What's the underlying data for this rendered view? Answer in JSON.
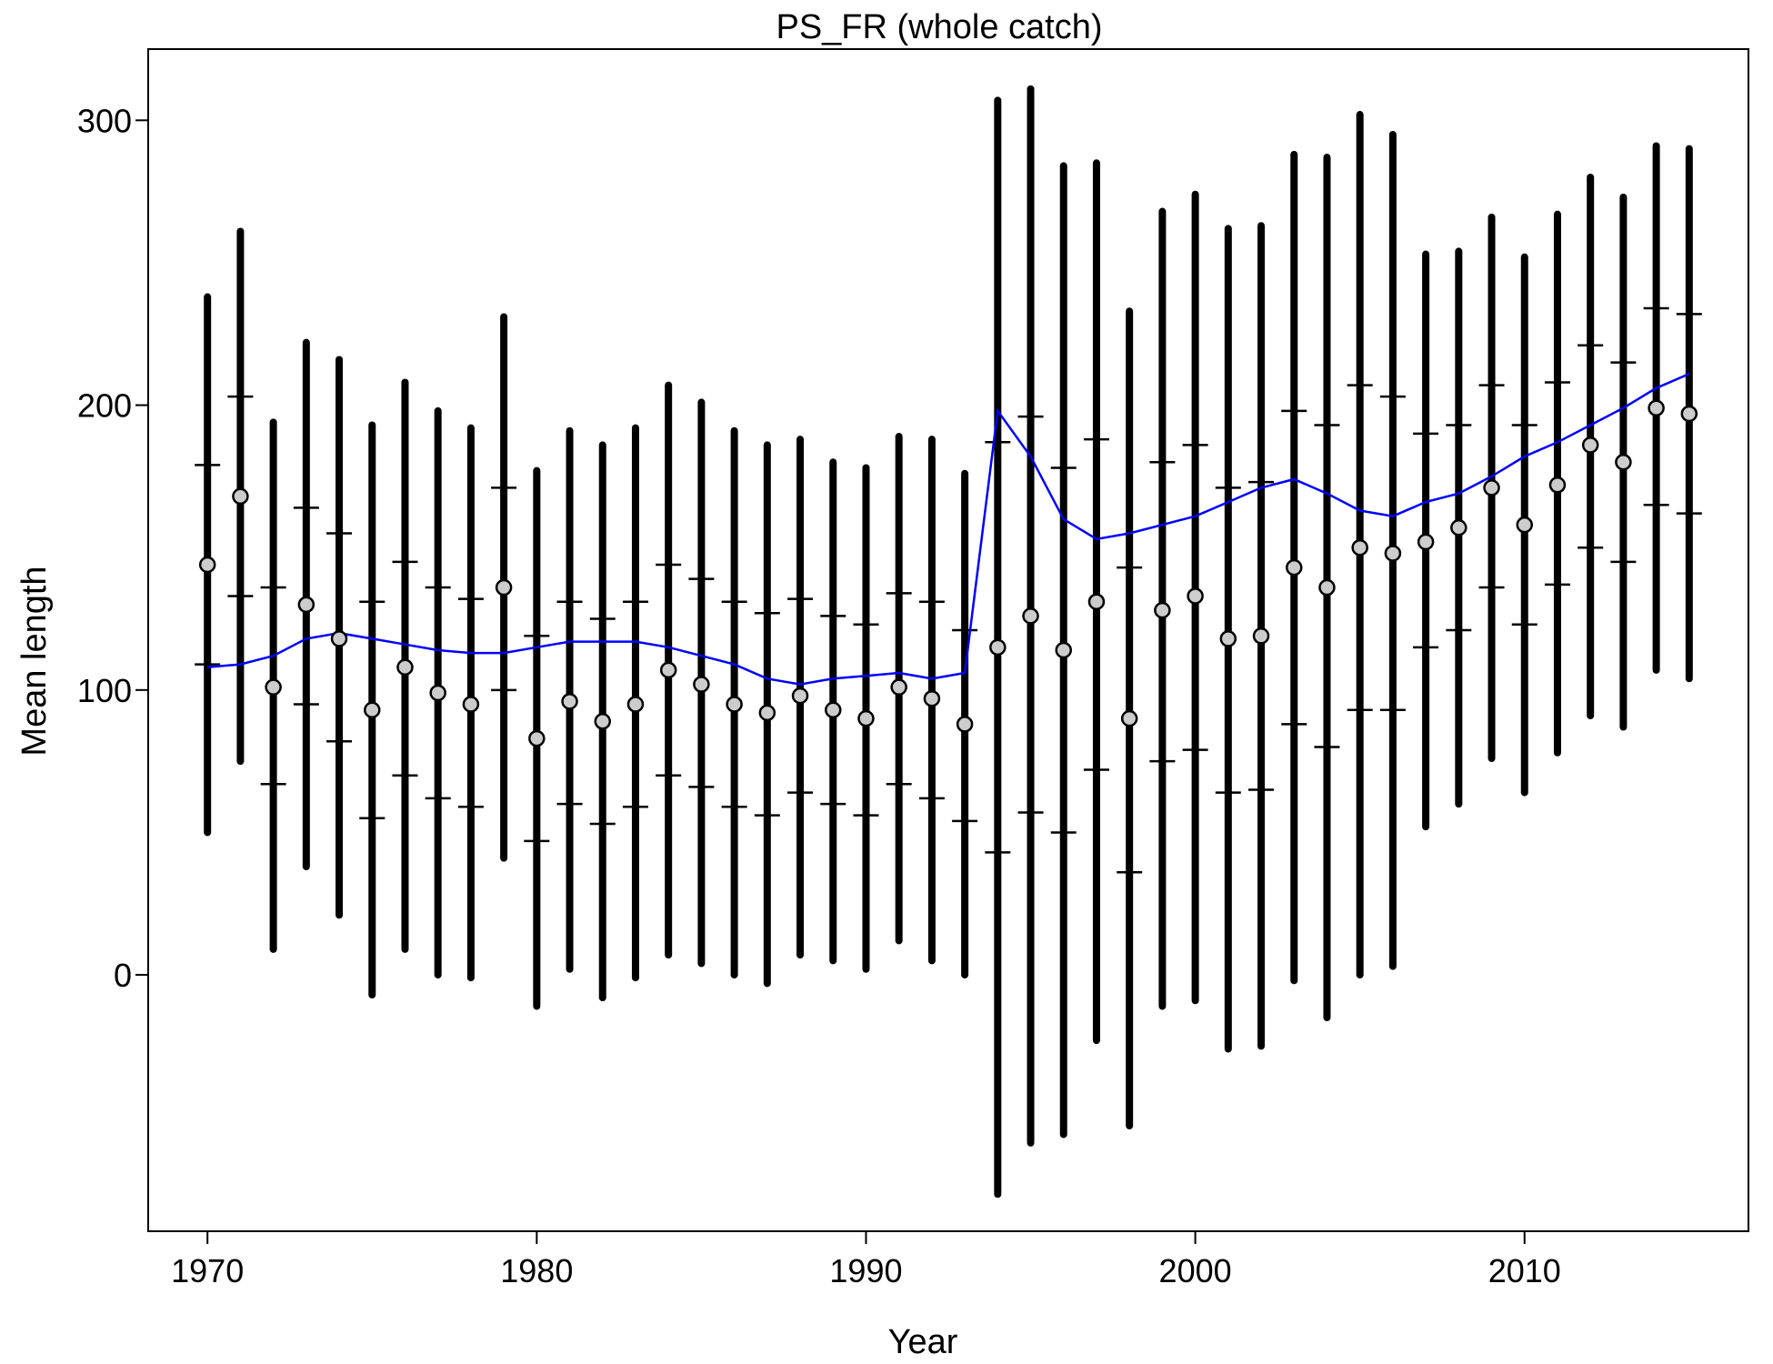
{
  "chart_data": {
    "type": "scatter",
    "title": "PS_FR (whole catch)",
    "xlabel": "Year",
    "ylabel": "Mean length",
    "xlim": [
      1968.2,
      2016.8
    ],
    "ylim": [
      -90,
      325
    ],
    "xticks": [
      1970,
      1980,
      1990,
      2000,
      2010
    ],
    "yticks": [
      0,
      100,
      200,
      300
    ],
    "grid": false,
    "legend": "none",
    "colors": {
      "observed": "#000000",
      "point_fill": "#cccccc",
      "expected_line": "#0000ff"
    },
    "series": [
      {
        "role": "observed",
        "x": [
          1970,
          1971,
          1972,
          1973,
          1974,
          1975,
          1976,
          1977,
          1978,
          1979,
          1980,
          1981,
          1982,
          1983,
          1984,
          1985,
          1986,
          1987,
          1988,
          1989,
          1990,
          1991,
          1992,
          1993,
          1994,
          1995,
          1996,
          1997,
          1998,
          1999,
          2000,
          2001,
          2002,
          2003,
          2004,
          2005,
          2006,
          2007,
          2008,
          2009,
          2010,
          2011,
          2012,
          2013,
          2014,
          2015
        ],
        "y": [
          144,
          168,
          101,
          130,
          118,
          93,
          108,
          99,
          95,
          136,
          83,
          96,
          89,
          95,
          107,
          102,
          95,
          92,
          98,
          93,
          90,
          101,
          97,
          88,
          115,
          126,
          114,
          131,
          90,
          128,
          133,
          118,
          119,
          143,
          136,
          150,
          148,
          152,
          157,
          171,
          158,
          172,
          186,
          180,
          199,
          197
        ],
        "inner_low": [
          109,
          133,
          67,
          95,
          82,
          55,
          70,
          62,
          59,
          100,
          47,
          60,
          53,
          59,
          70,
          66,
          59,
          56,
          64,
          60,
          56,
          67,
          62,
          54,
          43,
          57,
          50,
          72,
          36,
          75,
          79,
          64,
          65,
          88,
          80,
          93,
          93,
          115,
          121,
          136,
          123,
          137,
          150,
          145,
          165,
          162
        ],
        "inner_high": [
          179,
          203,
          136,
          164,
          155,
          131,
          145,
          136,
          132,
          171,
          119,
          131,
          125,
          131,
          144,
          139,
          131,
          127,
          132,
          126,
          123,
          134,
          131,
          121,
          187,
          196,
          178,
          188,
          143,
          180,
          186,
          171,
          173,
          198,
          193,
          207,
          203,
          190,
          193,
          207,
          193,
          208,
          221,
          215,
          234,
          232
        ],
        "outer_low": [
          50,
          75,
          9,
          38,
          21,
          -7,
          9,
          0,
          -1,
          41,
          -11,
          2,
          -8,
          -1,
          7,
          4,
          0,
          -3,
          7,
          5,
          2,
          12,
          5,
          0,
          -77,
          -59,
          -56,
          -23,
          -53,
          -11,
          -9,
          -26,
          -25,
          -2,
          -15,
          0,
          3,
          52,
          60,
          76,
          64,
          78,
          91,
          87,
          107,
          104
        ],
        "outer_high": [
          238,
          261,
          194,
          222,
          216,
          193,
          208,
          198,
          192,
          231,
          177,
          191,
          186,
          192,
          207,
          201,
          191,
          186,
          188,
          180,
          178,
          189,
          188,
          176,
          307,
          311,
          284,
          285,
          233,
          268,
          274,
          262,
          263,
          288,
          287,
          302,
          295,
          253,
          254,
          266,
          252,
          267,
          280,
          273,
          291,
          290
        ]
      },
      {
        "role": "expected",
        "x": [
          1970,
          1971,
          1972,
          1973,
          1974,
          1975,
          1976,
          1977,
          1978,
          1979,
          1980,
          1981,
          1982,
          1983,
          1984,
          1985,
          1986,
          1987,
          1988,
          1989,
          1990,
          1991,
          1992,
          1993,
          1994,
          1995,
          1996,
          1997,
          1998,
          1999,
          2000,
          2001,
          2002,
          2003,
          2004,
          2005,
          2006,
          2007,
          2008,
          2009,
          2010,
          2011,
          2012,
          2013,
          2014,
          2015
        ],
        "y": [
          108,
          109,
          112,
          118,
          120,
          118,
          116,
          114,
          113,
          113,
          115,
          117,
          117,
          117,
          115,
          112,
          109,
          104,
          102,
          104,
          105,
          106,
          104,
          106,
          198,
          182,
          160,
          153,
          155,
          158,
          161,
          166,
          171,
          174,
          169,
          163,
          161,
          166,
          169,
          175,
          182,
          187,
          193,
          199,
          206,
          211
        ]
      }
    ]
  }
}
